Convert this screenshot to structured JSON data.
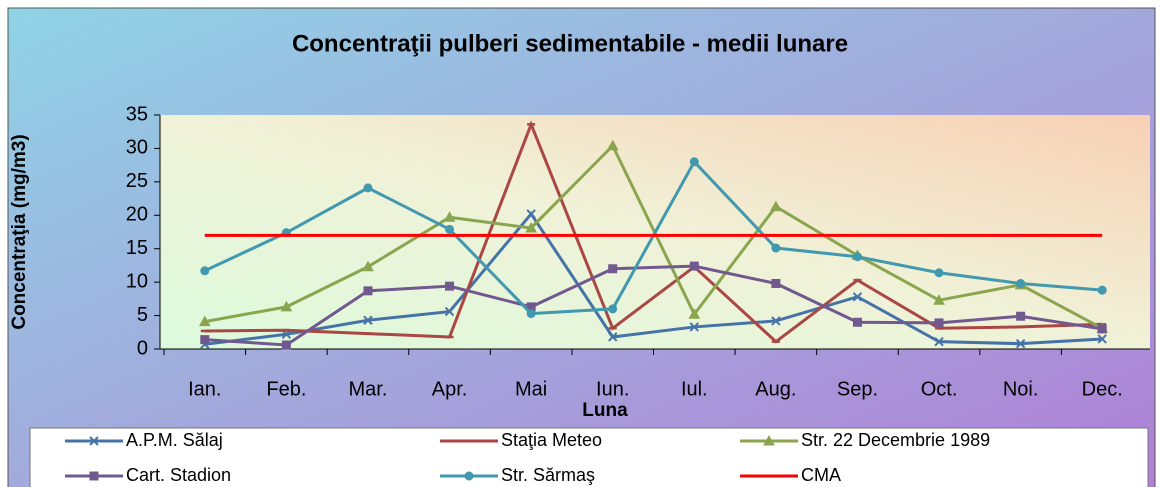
{
  "chart_data": {
    "type": "line",
    "title": "Concentraţii pulberi sedimentabile - medii lunare",
    "x_label": "Luna",
    "y_label": "Concentraţia (mg/m3)",
    "categories": [
      "Ian.",
      "Feb.",
      "Mar.",
      "Apr.",
      "Mai",
      "Iun.",
      "Iul.",
      "Aug.",
      "Sep.",
      "Oct.",
      "Noi.",
      "Dec."
    ],
    "ylim": [
      0,
      35
    ],
    "yticks": [
      0,
      5,
      10,
      15,
      20,
      25,
      30,
      35
    ],
    "series": [
      {
        "name": "A.P.M. Sălaj",
        "color": "#4572a7",
        "marker": "x",
        "values": [
          0.7,
          2.2,
          4.3,
          5.6,
          20.2,
          1.8,
          3.3,
          4.2,
          7.8,
          1.1,
          0.8,
          1.5
        ]
      },
      {
        "name": "Staţia Meteo",
        "color": "#aa4643",
        "marker": "dash",
        "values": [
          2.7,
          2.8,
          2.3,
          1.8,
          33.6,
          3.1,
          12.3,
          1.1,
          10.3,
          3.1,
          3.3,
          3.7
        ]
      },
      {
        "name": "Str. 22 Decembrie 1989",
        "color": "#89a54e",
        "marker": "triangle",
        "values": [
          4.1,
          6.3,
          12.3,
          19.7,
          18.1,
          30.4,
          5.2,
          21.3,
          14.0,
          7.3,
          9.6,
          3.1
        ]
      },
      {
        "name": "Cart. Stadion",
        "color": "#71588f",
        "marker": "square",
        "values": [
          1.4,
          0.6,
          8.7,
          9.4,
          6.3,
          12.0,
          12.4,
          9.8,
          4.0,
          3.9,
          4.9,
          3.0
        ]
      },
      {
        "name": "Str. Sărmaş",
        "color": "#4198af",
        "marker": "circle",
        "values": [
          11.7,
          17.4,
          24.1,
          17.9,
          5.3,
          6.0,
          28.0,
          15.1,
          13.8,
          11.4,
          9.8,
          8.8
        ]
      },
      {
        "name": "CMA",
        "color": "#ff0000",
        "marker": "none",
        "values": [
          17,
          17,
          17,
          17,
          17,
          17,
          17,
          17,
          17,
          17,
          17,
          17
        ]
      }
    ]
  }
}
